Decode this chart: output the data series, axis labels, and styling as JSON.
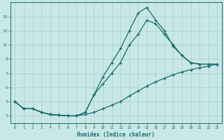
{
  "xlabel": "Humidex (Indice chaleur)",
  "bg_color": "#c8e8e8",
  "grid_color": "#a8cccc",
  "line_color": "#1a6b6b",
  "xlim": [
    -0.5,
    23.5
  ],
  "ylim": [
    0,
    17
  ],
  "xticks": [
    0,
    1,
    2,
    3,
    4,
    5,
    6,
    7,
    8,
    9,
    10,
    11,
    12,
    13,
    14,
    15,
    16,
    17,
    18,
    19,
    20,
    21,
    22,
    23
  ],
  "yticks": [
    1,
    3,
    5,
    7,
    9,
    11,
    13,
    15
  ],
  "line_top_x": [
    0,
    1,
    2,
    3,
    4,
    5,
    6,
    7,
    8,
    9,
    10,
    11,
    12,
    13,
    14,
    15,
    16,
    17,
    18,
    19,
    20,
    21,
    22,
    23
  ],
  "line_top_y": [
    3.0,
    2.0,
    2.0,
    1.5,
    1.2,
    1.1,
    1.0,
    1.0,
    1.5,
    4.0,
    6.5,
    8.5,
    10.5,
    13.0,
    15.5,
    16.3,
    14.5,
    13.0,
    10.8,
    9.5,
    8.5,
    8.3,
    8.3,
    8.3
  ],
  "line_mid_x": [
    0,
    1,
    2,
    3,
    4,
    5,
    6,
    7,
    8,
    9,
    10,
    11,
    12,
    13,
    14,
    15,
    16,
    17,
    18,
    19,
    20,
    21,
    22,
    23
  ],
  "line_mid_y": [
    3.0,
    2.0,
    2.0,
    1.5,
    1.2,
    1.1,
    1.0,
    1.0,
    1.5,
    4.0,
    5.5,
    7.0,
    8.5,
    11.0,
    12.5,
    14.5,
    14.0,
    12.5,
    11.0,
    9.5,
    8.5,
    8.3,
    8.3,
    8.3
  ],
  "line_bot_x": [
    0,
    1,
    2,
    3,
    4,
    5,
    6,
    7,
    8,
    9,
    10,
    11,
    12,
    13,
    14,
    15,
    16,
    17,
    18,
    19,
    20,
    21,
    22,
    23
  ],
  "line_bot_y": [
    3.0,
    2.0,
    2.0,
    1.5,
    1.2,
    1.1,
    1.0,
    1.0,
    1.2,
    1.5,
    2.0,
    2.5,
    3.0,
    3.8,
    4.5,
    5.2,
    5.8,
    6.3,
    6.8,
    7.2,
    7.5,
    7.8,
    8.0,
    8.3
  ]
}
